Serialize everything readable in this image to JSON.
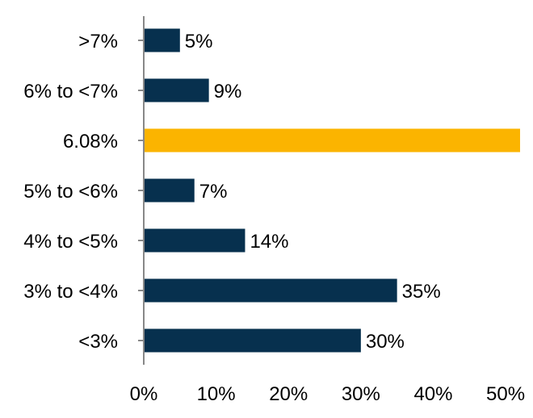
{
  "chart_data": {
    "type": "bar",
    "orientation": "horizontal",
    "categories": [
      ">7%",
      "6% to <7%",
      "6.08%",
      "5% to <6%",
      "4% to <5%",
      "3% to <4%",
      "<3%"
    ],
    "values": [
      5,
      9,
      52,
      7,
      14,
      35,
      30
    ],
    "value_labels": [
      "5%",
      "9%",
      "",
      "7%",
      "14%",
      "35%",
      "30%"
    ],
    "bar_colors": [
      "#07304e",
      "#07304e",
      "#fbb400",
      "#07304e",
      "#07304e",
      "#07304e",
      "#07304e"
    ],
    "xlim": [
      0,
      52
    ],
    "xticks": [
      0,
      10,
      20,
      30,
      40,
      50
    ],
    "xtick_labels": [
      "0%",
      "10%",
      "20%",
      "30%",
      "40%",
      "50%"
    ],
    "title": "",
    "xlabel": "",
    "ylabel": "",
    "grid": false,
    "legend": "none",
    "colors": {
      "primary": "#07304e",
      "highlight": "#fbb400",
      "axis": "#888888"
    }
  }
}
